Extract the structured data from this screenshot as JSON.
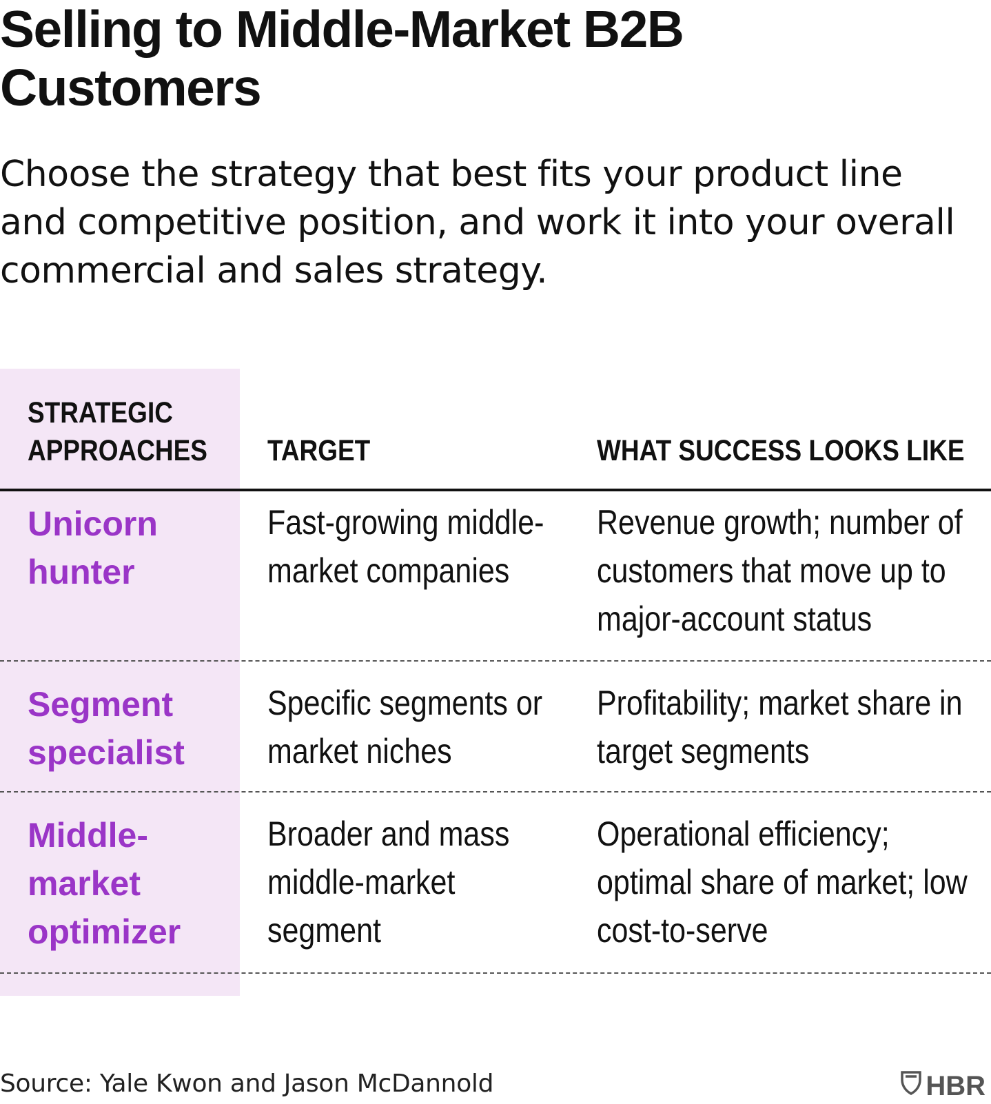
{
  "title": "Selling to Middle-Market B2B Customers",
  "subtitle": "Choose the strategy that best fits your product line and competitive position, and work it into your overall commercial and sales strategy.",
  "table": {
    "headers": {
      "approach": "STRATEGIC APPROACHES",
      "target": "TARGET",
      "success": "WHAT SUCCESS LOOKS LIKE"
    },
    "rows": [
      {
        "approach": "Unicorn hunter",
        "target": "Fast-growing middle-market companies",
        "success": "Revenue growth; number of customers that move up to major-account status"
      },
      {
        "approach": "Segment specialist",
        "target": "Specific segments or market niches",
        "success": "Profitability; market share in target segments"
      },
      {
        "approach": "Middle-market optimizer",
        "target": "Broader and mass middle-market segment",
        "success": "Operational efficiency; optimal share of market; low cost-to-serve"
      }
    ]
  },
  "source": "Source: Yale Kwon and Jason McDannold",
  "logo": {
    "text": "HBR",
    "icon": "shield-icon"
  },
  "colors": {
    "accent": "#9a35c7",
    "approach_column_bg": "#f4e6f6",
    "text": "#111111"
  }
}
